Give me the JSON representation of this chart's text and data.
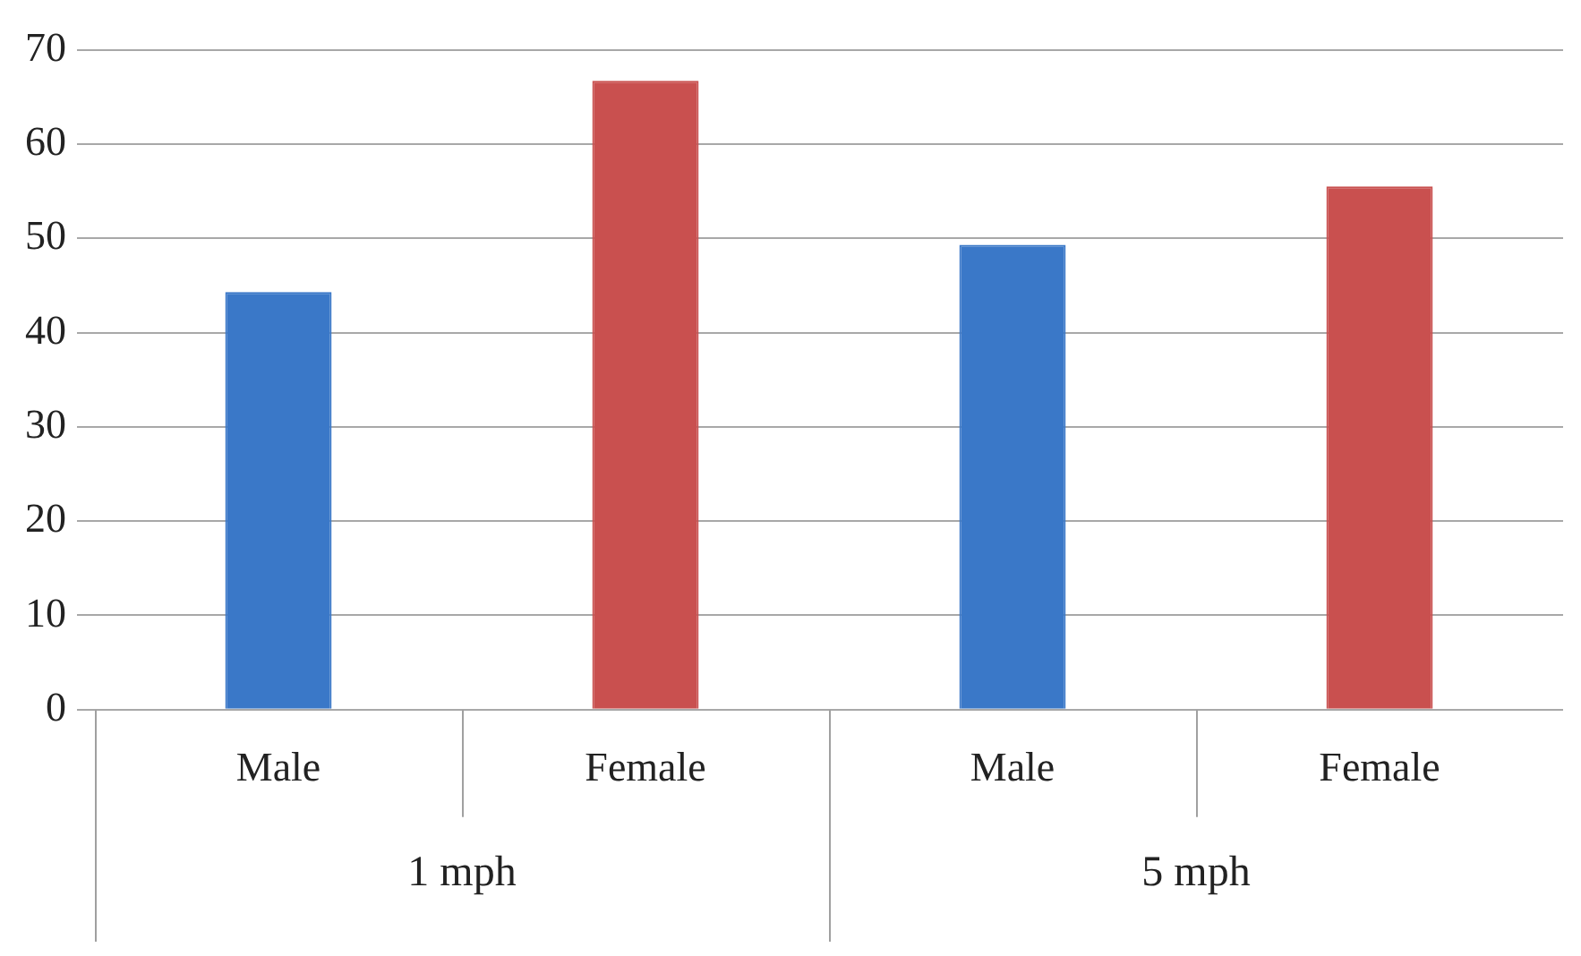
{
  "chart_data": {
    "type": "bar",
    "categories": [
      "Male",
      "Female",
      "Male",
      "Female"
    ],
    "values": [
      44.3,
      66.7,
      49.3,
      55.5
    ],
    "colors": [
      "#3a78c8",
      "#c9504f",
      "#3a78c8",
      "#c9504f"
    ],
    "annotations": [
      "1 mph",
      "5 mph"
    ],
    "ylim": [
      0,
      70
    ],
    "yticks": [
      0,
      10,
      20,
      30,
      40,
      50,
      60,
      70
    ],
    "grid": "y",
    "legend": false
  }
}
